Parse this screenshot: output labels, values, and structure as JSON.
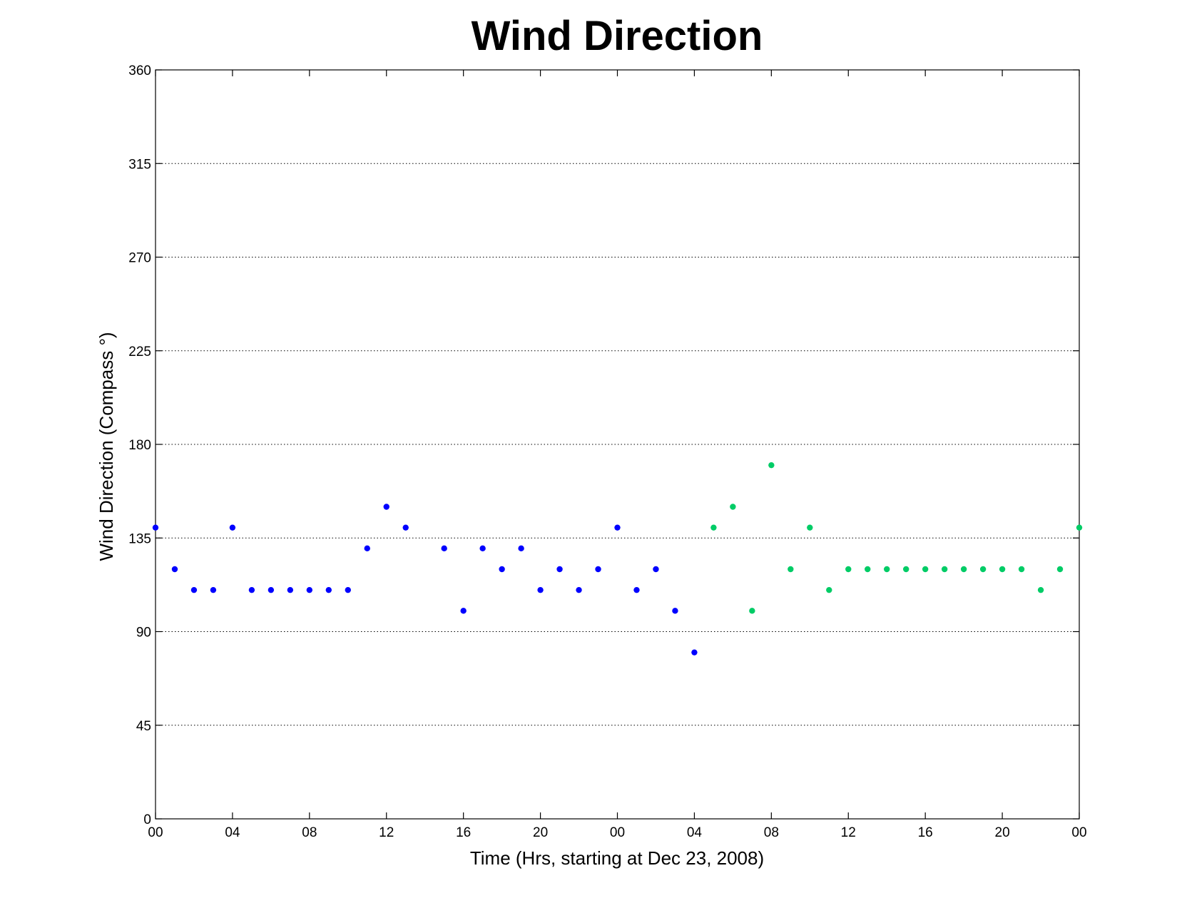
{
  "chart_data": {
    "type": "scatter",
    "title": "Wind Direction",
    "xlabel": "Time (Hrs, starting at Dec 23, 2008)",
    "ylabel": "Wind Direction (Compass  °)",
    "xlim": [
      0,
      48
    ],
    "ylim": [
      0,
      360
    ],
    "grid": true,
    "x_ticks": [
      {
        "x": 0,
        "label": "00"
      },
      {
        "x": 4,
        "label": "04"
      },
      {
        "x": 8,
        "label": "08"
      },
      {
        "x": 12,
        "label": "12"
      },
      {
        "x": 16,
        "label": "16"
      },
      {
        "x": 20,
        "label": "20"
      },
      {
        "x": 24,
        "label": "00"
      },
      {
        "x": 28,
        "label": "04"
      },
      {
        "x": 32,
        "label": "08"
      },
      {
        "x": 36,
        "label": "12"
      },
      {
        "x": 40,
        "label": "16"
      },
      {
        "x": 44,
        "label": "20"
      },
      {
        "x": 48,
        "label": "00"
      }
    ],
    "y_ticks": [
      {
        "y": 0,
        "label": "0"
      },
      {
        "y": 45,
        "label": "45"
      },
      {
        "y": 90,
        "label": "90"
      },
      {
        "y": 135,
        "label": "135"
      },
      {
        "y": 180,
        "label": "180"
      },
      {
        "y": 225,
        "label": "225"
      },
      {
        "y": 270,
        "label": "270"
      },
      {
        "y": 315,
        "label": "315"
      },
      {
        "y": 360,
        "label": "360"
      }
    ],
    "series": [
      {
        "color": "#0000ff",
        "points": [
          [
            0,
            140
          ],
          [
            1,
            120
          ],
          [
            2,
            110
          ],
          [
            3,
            110
          ],
          [
            4,
            140
          ],
          [
            5,
            110
          ],
          [
            6,
            110
          ],
          [
            7,
            110
          ],
          [
            8,
            110
          ],
          [
            9,
            110
          ],
          [
            10,
            110
          ],
          [
            11,
            130
          ],
          [
            12,
            150
          ],
          [
            13,
            140
          ],
          [
            15,
            130
          ],
          [
            16,
            100
          ],
          [
            17,
            130
          ],
          [
            18,
            120
          ],
          [
            19,
            130
          ],
          [
            20,
            110
          ],
          [
            21,
            120
          ],
          [
            22,
            110
          ],
          [
            23,
            120
          ],
          [
            24,
            140
          ],
          [
            25,
            110
          ],
          [
            26,
            120
          ],
          [
            27,
            100
          ],
          [
            28,
            80
          ]
        ]
      },
      {
        "color": "#00cc66",
        "points": [
          [
            29,
            140
          ],
          [
            30,
            150
          ],
          [
            31,
            100
          ],
          [
            32,
            170
          ],
          [
            33,
            120
          ],
          [
            34,
            140
          ],
          [
            35,
            110
          ],
          [
            36,
            120
          ],
          [
            37,
            120
          ],
          [
            38,
            120
          ],
          [
            39,
            120
          ],
          [
            40,
            120
          ],
          [
            41,
            120
          ],
          [
            42,
            120
          ],
          [
            43,
            120
          ],
          [
            44,
            120
          ],
          [
            45,
            120
          ],
          [
            46,
            110
          ],
          [
            47,
            120
          ],
          [
            48,
            140
          ]
        ]
      }
    ]
  }
}
